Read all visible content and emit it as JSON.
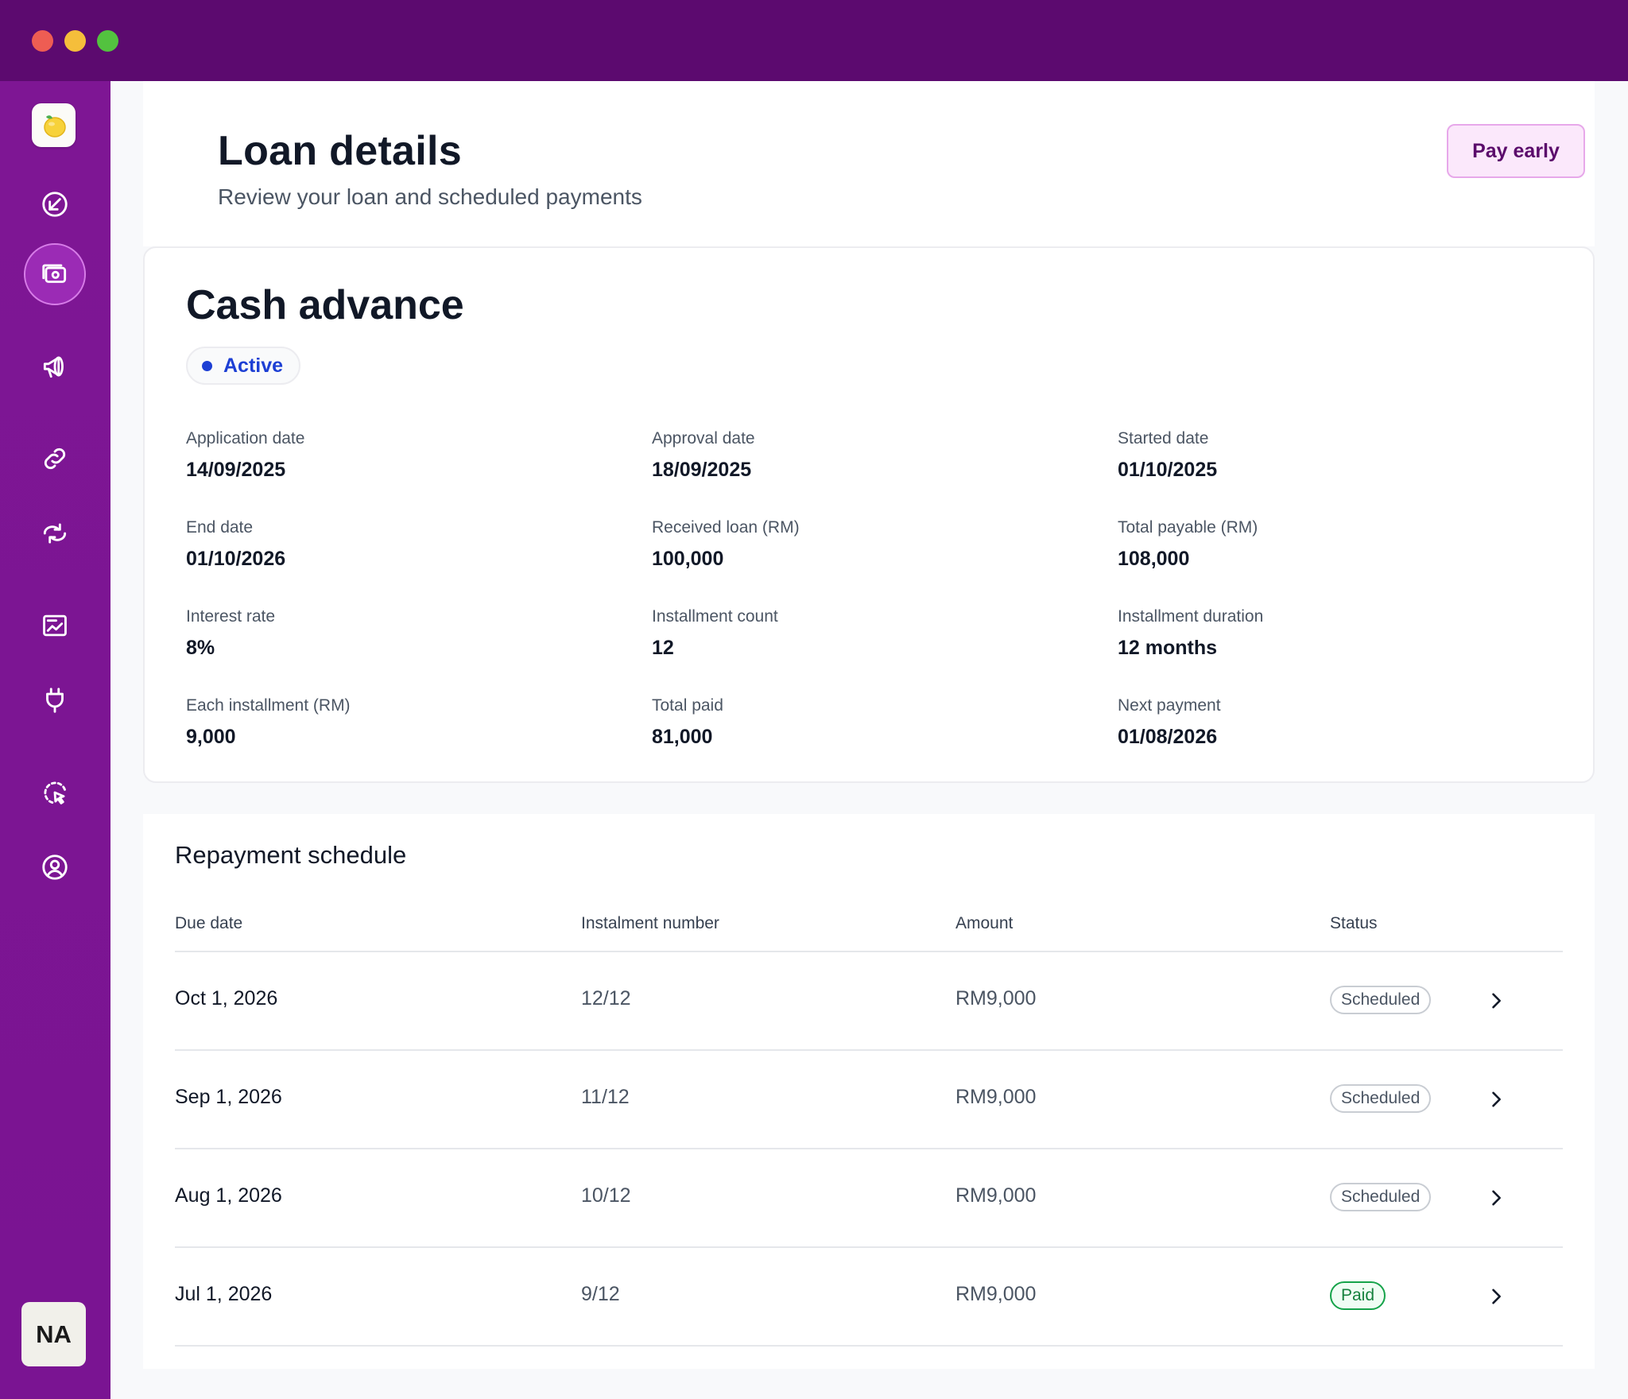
{
  "header": {
    "title": "Loan details",
    "subtitle": "Review your loan and scheduled payments",
    "pay_early_label": "Pay early"
  },
  "loan": {
    "title": "Cash advance",
    "status": "Active",
    "fields": [
      {
        "label": "Application date",
        "value": "14/09/2025"
      },
      {
        "label": "Approval date",
        "value": "18/09/2025"
      },
      {
        "label": "Started date",
        "value": "01/10/2025"
      },
      {
        "label": "End date",
        "value": "01/10/2026"
      },
      {
        "label": "Received loan (RM)",
        "value": "100,000"
      },
      {
        "label": "Total payable (RM)",
        "value": "108,000"
      },
      {
        "label": "Interest rate",
        "value": "8%"
      },
      {
        "label": "Installment count",
        "value": "12"
      },
      {
        "label": "Installment duration",
        "value": "12 months"
      },
      {
        "label": "Each installment (RM)",
        "value": "9,000"
      },
      {
        "label": "Total paid",
        "value": "81,000"
      },
      {
        "label": "Next payment",
        "value": "01/08/2026"
      }
    ]
  },
  "schedule": {
    "title": "Repayment schedule",
    "columns": [
      "Due date",
      "Instalment number",
      "Amount",
      "Status"
    ],
    "rows": [
      {
        "due": "Oct 1, 2026",
        "number": "12/12",
        "amount": "RM9,000",
        "status": "Scheduled"
      },
      {
        "due": "Sep 1, 2026",
        "number": "11/12",
        "amount": "RM9,000",
        "status": "Scheduled"
      },
      {
        "due": "Aug 1, 2026",
        "number": "10/12",
        "amount": "RM9,000",
        "status": "Scheduled"
      },
      {
        "due": "Jul 1, 2026",
        "number": "9/12",
        "amount": "RM9,000",
        "status": "Paid"
      }
    ]
  },
  "sidebar": {
    "items": [
      {
        "icon": "send-arrow-icon"
      },
      {
        "icon": "loans-icon",
        "active": true
      },
      {
        "icon": "megaphone-icon"
      },
      {
        "icon": "link-icon"
      },
      {
        "icon": "refresh-icon"
      },
      {
        "icon": "reports-icon"
      },
      {
        "icon": "plug-icon"
      },
      {
        "icon": "cursor-select-icon"
      },
      {
        "icon": "user-circle-icon"
      }
    ],
    "avatar_initials": "NA"
  },
  "colors": {
    "titlebar": "#5c0a6f",
    "sidebar": "#7e1694",
    "accent_button_bg": "#fbe8fb",
    "active_status": "#1d3fd4",
    "paid_status": "#15803d"
  }
}
